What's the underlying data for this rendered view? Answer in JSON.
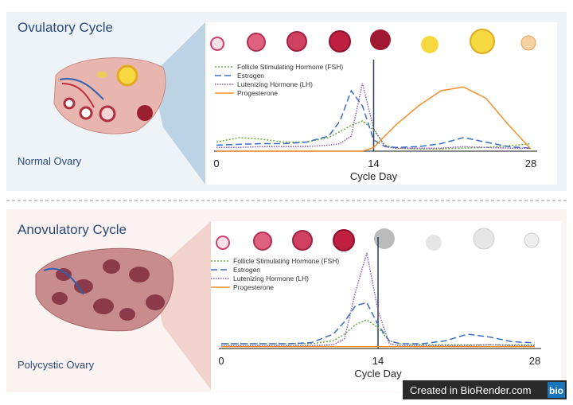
{
  "panels": [
    {
      "title": "Ovulatory Cycle",
      "ovary_label": "Normal Ovary"
    },
    {
      "title": "Anovulatory Cycle",
      "ovary_label": "Polycystic Ovary"
    }
  ],
  "chart_data": [
    {
      "type": "line",
      "x_label": "Cycle Day",
      "xlim": [
        0,
        28
      ],
      "xticks": [
        0,
        14,
        28
      ],
      "ylim": [
        0,
        100
      ],
      "x": [
        0,
        2,
        4,
        6,
        8,
        10,
        11,
        12,
        13,
        14,
        15,
        16,
        18,
        20,
        22,
        24,
        26,
        28
      ],
      "series": [
        {
          "name": "Follicle Stimulating Hormone (FSH)",
          "color": "#6aaa3a",
          "values": [
            12,
            18,
            16,
            12,
            12,
            18,
            26,
            34,
            40,
            28,
            8,
            4,
            3,
            3,
            4,
            5,
            7,
            10
          ]
        },
        {
          "name": "Estrogen",
          "color": "#3c6fc4",
          "values": [
            8,
            9,
            10,
            10,
            12,
            20,
            40,
            80,
            60,
            15,
            6,
            5,
            6,
            10,
            18,
            12,
            6,
            4
          ]
        },
        {
          "name": "Lutenizing Hormone (LH)",
          "color": "#8a5cc0",
          "values": [
            5,
            5,
            6,
            6,
            6,
            8,
            10,
            20,
            90,
            30,
            6,
            4,
            4,
            4,
            6,
            5,
            4,
            4
          ]
        },
        {
          "name": "Progesterone",
          "color": "#f0902a",
          "values": [
            0,
            0,
            0,
            0,
            0,
            0,
            0,
            0,
            0,
            5,
            20,
            35,
            60,
            80,
            85,
            70,
            35,
            3
          ]
        }
      ]
    },
    {
      "type": "line",
      "x_label": "Cycle Day",
      "xlim": [
        0,
        28
      ],
      "xticks": [
        0,
        14,
        28
      ],
      "ylim": [
        0,
        100
      ],
      "x": [
        0,
        2,
        4,
        6,
        8,
        10,
        11,
        12,
        13,
        14,
        15,
        16,
        18,
        20,
        22,
        24,
        26,
        28
      ],
      "series": [
        {
          "name": "Follicle Stimulating Hormone (FSH)",
          "color": "#6aaa3a",
          "values": [
            5,
            5,
            5,
            5,
            5,
            8,
            15,
            25,
            30,
            22,
            8,
            5,
            4,
            4,
            4,
            4,
            4,
            4
          ]
        },
        {
          "name": "Estrogen",
          "color": "#3c6fc4",
          "values": [
            5,
            5,
            5,
            5,
            6,
            15,
            28,
            45,
            48,
            25,
            8,
            5,
            5,
            8,
            15,
            12,
            7,
            6
          ]
        },
        {
          "name": "Lutenizing Hormone (LH)",
          "color": "#8a5cc0",
          "values": [
            3,
            3,
            3,
            3,
            3,
            4,
            10,
            60,
            100,
            40,
            5,
            3,
            3,
            3,
            3,
            4,
            3,
            3
          ]
        },
        {
          "name": "Progesterone",
          "color": "#f0902a",
          "values": [
            2,
            2,
            2,
            2,
            2,
            2,
            2,
            2,
            2,
            2,
            2,
            2,
            2,
            2,
            2,
            2,
            2,
            2
          ]
        }
      ]
    }
  ],
  "footer": {
    "text": "Created in BioRender.com",
    "logo": "bio"
  }
}
